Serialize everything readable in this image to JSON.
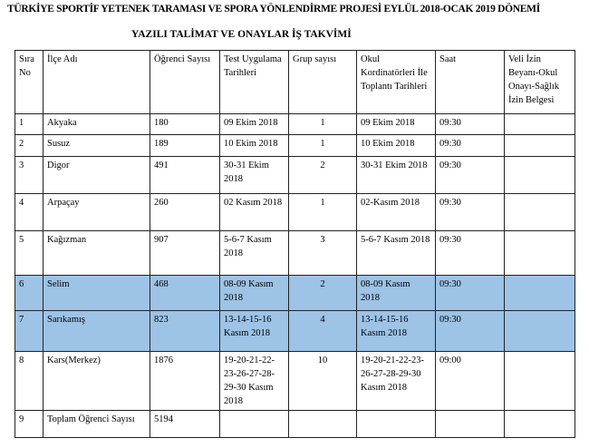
{
  "title": "TÜRKİYE SPORTİF YETENEK TARAMASI VE SPORA YÖNLENDİRME PROJESİ EYLÜL 2018-OCAK 2019 DÖNEMİ",
  "subtitle": "YAZILI TALİMAT VE ONAYLAR İŞ TAKVİMİ",
  "highlight_color": "#9dc3e6",
  "headers": [
    "Sıra No",
    "İlçe Adı",
    "Öğrenci Sayısı",
    "Test Uygulama Tarihleri",
    "Grup sayısı",
    "Okul Kordinatörleri İle Toplantı Tarihleri",
    "Saat",
    "Veli İzin Beyanı-Okul Onayı-Sağlık İzin Belgesi"
  ],
  "rows": [
    [
      "1",
      "Akyaka",
      "180",
      "09 Ekim 2018",
      "1",
      "09 Ekim 2018",
      "09:30",
      ""
    ],
    [
      "2",
      "Susuz",
      "189",
      "10 Ekim 2018",
      "1",
      "10 Ekim 2018",
      "09:30",
      ""
    ],
    [
      "3",
      "Digor",
      "491",
      "30-31  Ekim 2018",
      "2",
      "30-31  Ekim 2018",
      "09:30",
      ""
    ],
    [
      "4",
      "Arpaçay",
      "260",
      "02 Kasım 2018",
      "1",
      "02-Kasım 2018",
      "09:30",
      ""
    ],
    [
      "5",
      "Kağızman",
      "907",
      "5-6-7  Kasım 2018",
      "3",
      "5-6-7  Kasım 2018",
      "09:30",
      ""
    ],
    [
      "6",
      "Selim",
      "468",
      " 08-09 Kasım 2018",
      "2",
      "08-09 Kasım 2018",
      "09:30",
      ""
    ],
    [
      "7",
      "Sarıkamış",
      "823",
      "13-14-15-16 Kasım 2018",
      "4",
      "13-14-15-16 Kasım 2018",
      "09:30",
      ""
    ],
    [
      "8",
      "Kars(Merkez)",
      "1876",
      "19-20-21-22-23-26-27-28-29-30 Kasım 2018",
      "10",
      "19-20-21-22-23-26-27-28-29-30 Kasım 2018",
      "09:00",
      ""
    ],
    [
      "9",
      "Toplam Öğrenci Sayısı",
      "5194",
      "",
      "",
      "",
      "",
      ""
    ]
  ],
  "highlighted_rows": [
    5,
    6
  ]
}
